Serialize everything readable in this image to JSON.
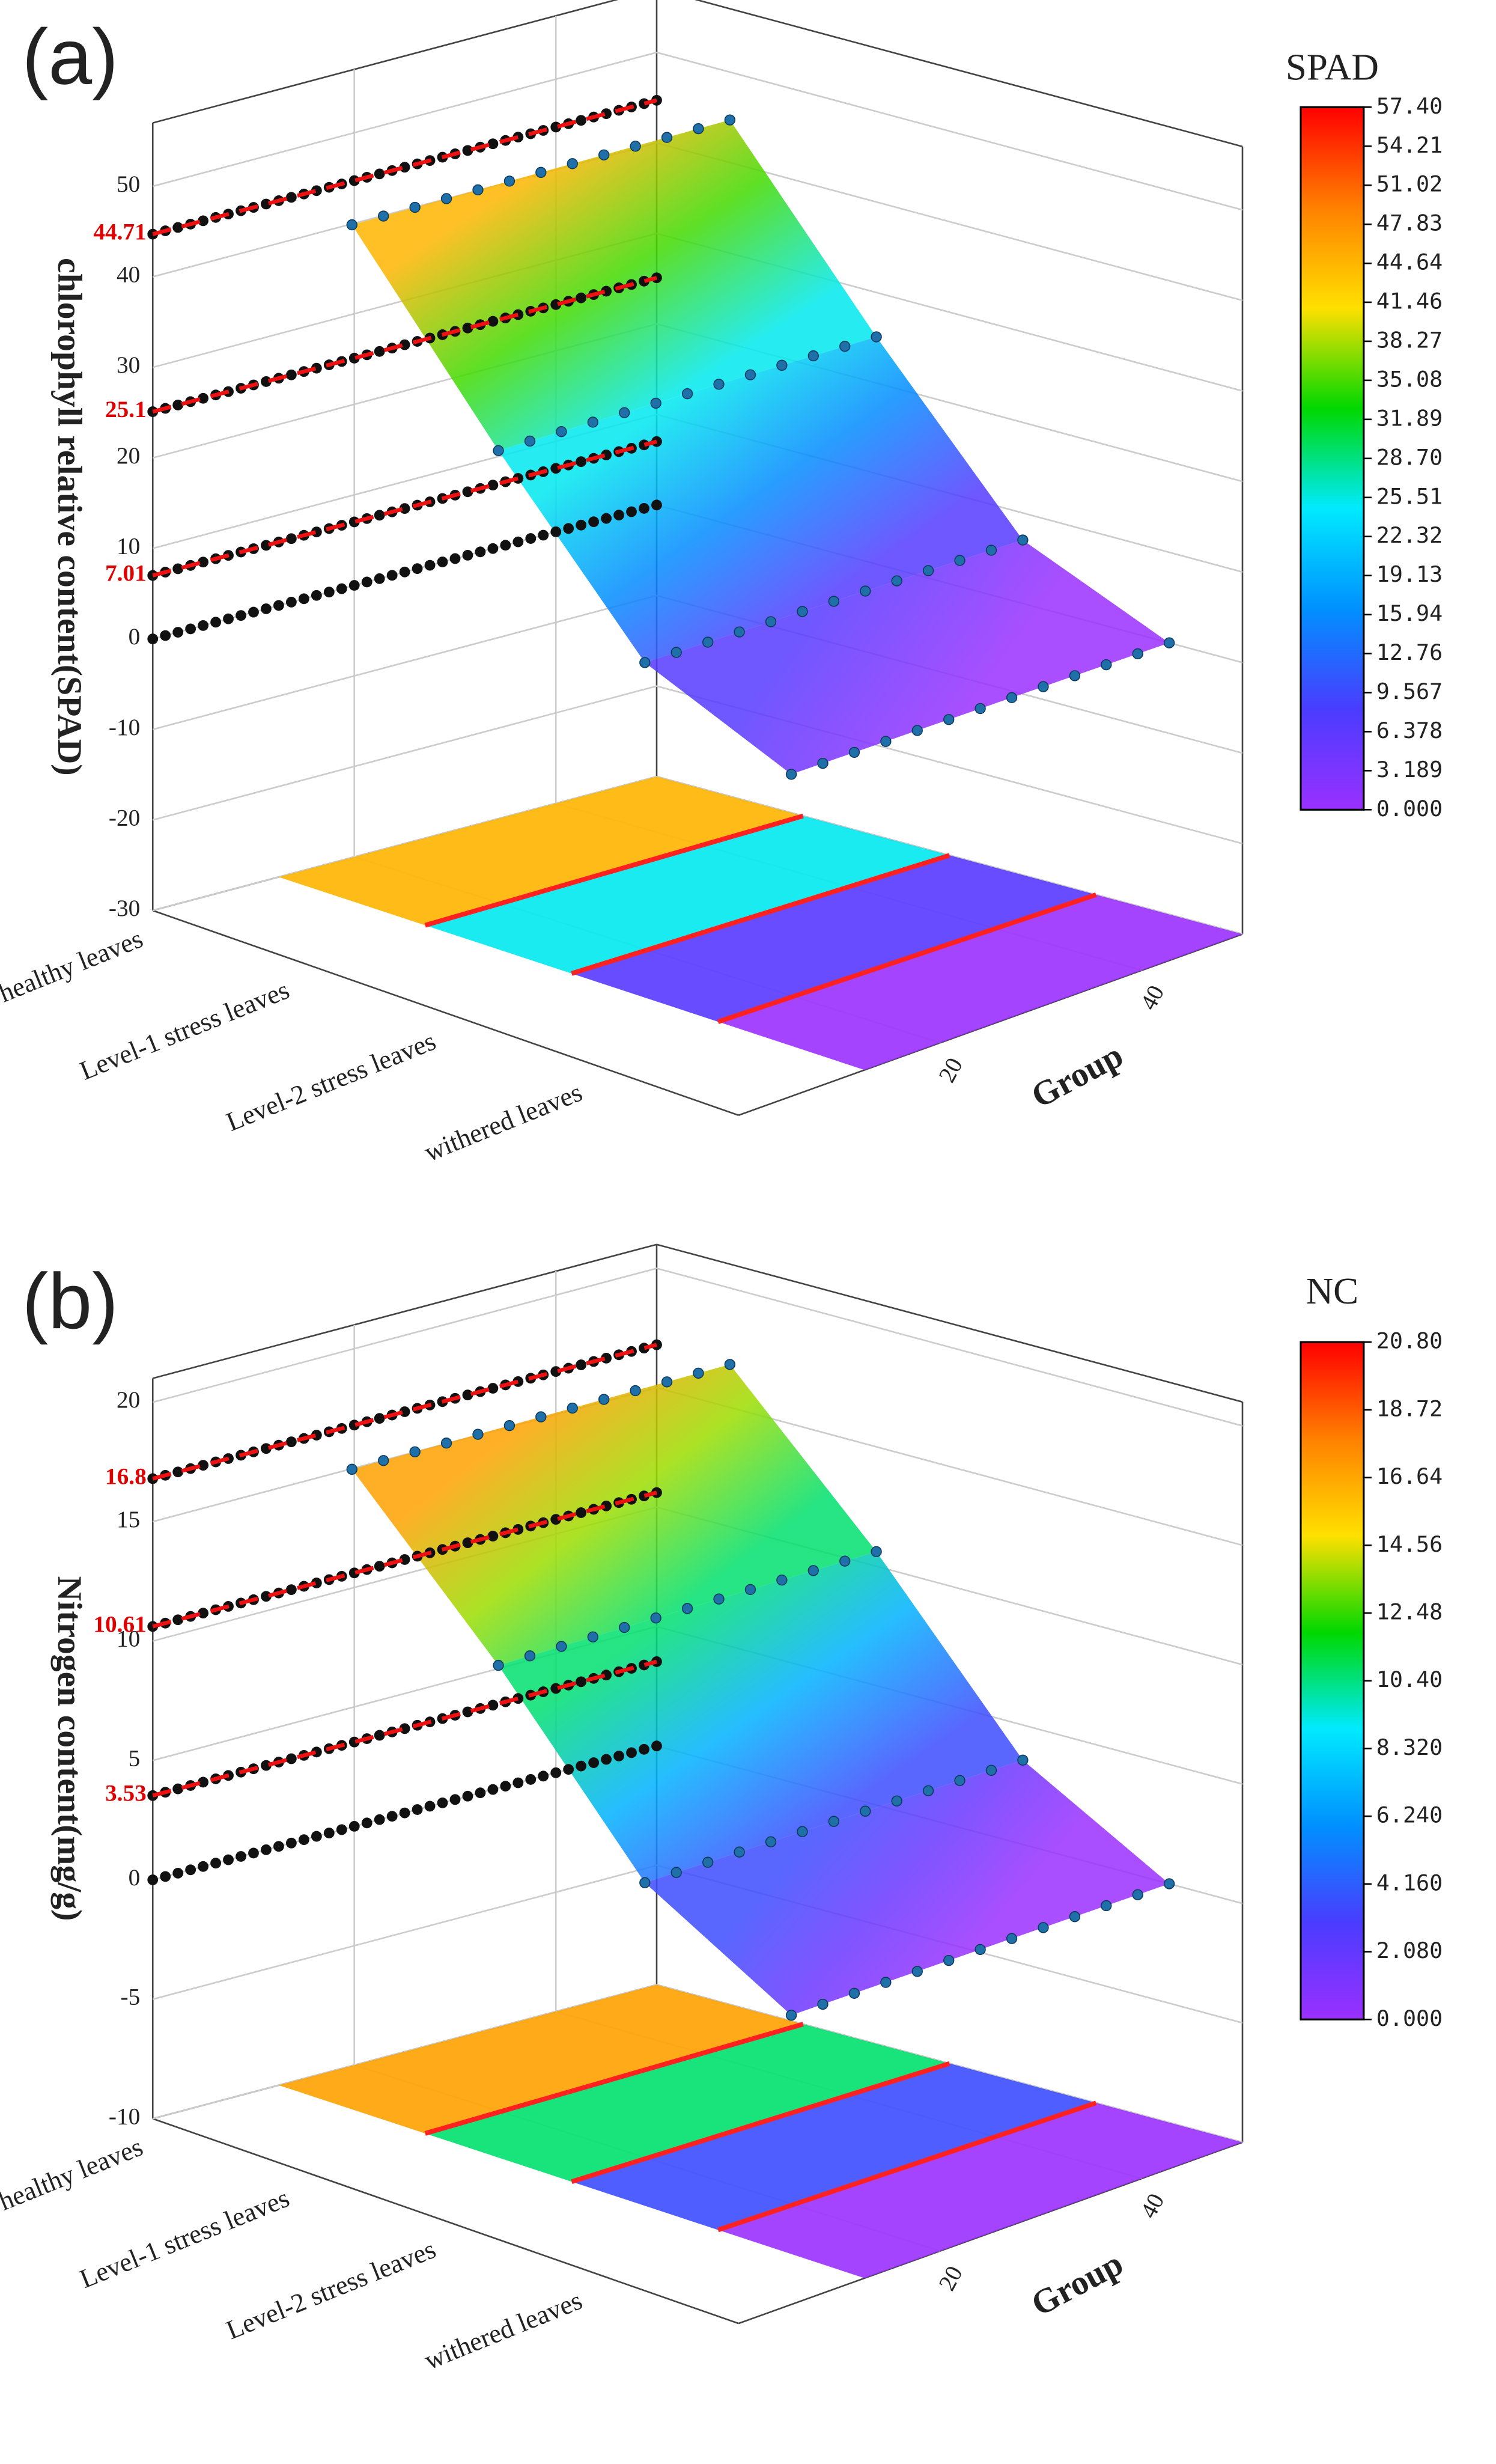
{
  "chart_data": [
    {
      "type": "surface",
      "panel_label": "(a)",
      "z_label": "chlorophyll relative content(SPAD)",
      "x_label": "Group",
      "categories": [
        "healthy leaves",
        "Level-1 stress leaves",
        "Level-2 stress leaves",
        "withered leaves"
      ],
      "values": [
        44.71,
        25.1,
        7.01,
        0
      ],
      "value_labels": [
        "44.71",
        "25.1",
        "7.01",
        null
      ],
      "ylim": [
        -30,
        57
      ],
      "yticks": [
        -30,
        -20,
        -10,
        0,
        10,
        20,
        30,
        40,
        50
      ],
      "xlim": [
        0,
        50
      ],
      "xticks": [
        20,
        40
      ],
      "colorbar": {
        "title": "SPAD",
        "lim": [
          0,
          57.4
        ],
        "colors": [
          "#9a30ff",
          "#4a3cff",
          "#0090ff",
          "#00eaff",
          "#00d800",
          "#ffe000",
          "#ff8000",
          "#ff0000"
        ],
        "ticks": [
          {
            "value": 57.4,
            "label": "57.40"
          },
          54.21,
          51.02,
          47.83,
          44.64,
          41.46,
          38.27,
          35.08,
          31.89,
          {
            "value": 28.7,
            "label": "28.70"
          },
          25.51,
          22.32,
          19.13,
          15.94,
          12.76,
          9.567,
          6.378,
          3.189,
          {
            "value": 0,
            "label": "0.000"
          }
        ]
      }
    },
    {
      "type": "surface",
      "panel_label": "(b)",
      "z_label": "Nitrogen content(mg/g)",
      "x_label": "Group",
      "categories": [
        "healthy leaves",
        "Level-1 stress leaves",
        "Level-2 stress leaves",
        "withered leaves"
      ],
      "values": [
        16.8,
        10.61,
        3.53,
        0
      ],
      "value_labels": [
        "16.8",
        "10.61",
        "3.53",
        null
      ],
      "ylim": [
        -10,
        21
      ],
      "yticks": [
        -10,
        -5,
        0,
        5,
        10,
        15,
        20
      ],
      "xlim": [
        0,
        50
      ],
      "xticks": [
        20,
        40
      ],
      "colorbar": {
        "title": "NC",
        "lim": [
          0,
          20.8
        ],
        "colors": [
          "#9a30ff",
          "#4a3cff",
          "#0090ff",
          "#00eaff",
          "#00d800",
          "#ffe000",
          "#ff8000",
          "#ff0000"
        ],
        "ticks": [
          {
            "value": 20.8,
            "label": "20.80"
          },
          18.72,
          16.64,
          14.56,
          12.48,
          {
            "value": 10.4,
            "label": "10.40"
          },
          {
            "value": 8.32,
            "label": "8.320"
          },
          {
            "value": 6.24,
            "label": "6.240"
          },
          {
            "value": 4.16,
            "label": "4.160"
          },
          {
            "value": 2.08,
            "label": "2.080"
          },
          {
            "value": 0,
            "label": "0.000"
          }
        ]
      }
    }
  ]
}
